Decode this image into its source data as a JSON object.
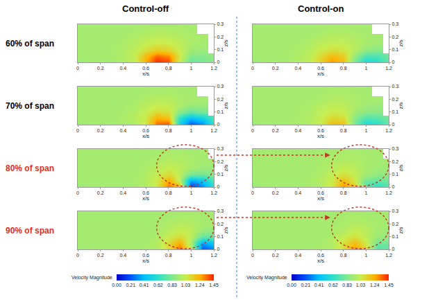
{
  "chart_data": {
    "type": "heatmap",
    "columns": [
      "Control-off",
      "Control-on"
    ],
    "xlabel": "x/s",
    "ylabel": "z/s",
    "x": [
      0,
      0.1,
      0.2,
      0.3,
      0.4,
      0.5,
      0.6,
      0.7,
      0.8,
      0.9,
      1.0,
      1.1,
      1.2
    ],
    "y": [
      0,
      0.05,
      0.1,
      0.15,
      0.2,
      0.25,
      0.3
    ],
    "xlim": [
      0,
      1.2
    ],
    "xticks": [
      0,
      0.2,
      0.4,
      0.6,
      0.8,
      1,
      1.2
    ],
    "ylim": [
      0,
      0.3
    ],
    "yticks": [
      0,
      0.1,
      0.2,
      0.3
    ],
    "colorbar": {
      "title": "Velocity Magnitude",
      "range": [
        0,
        1.45
      ],
      "ticks": [
        {
          "value": 0,
          "label": "0.00"
        },
        {
          "value": 0.21,
          "label": "0.21"
        },
        {
          "value": 0.41,
          "label": "0.41"
        },
        {
          "value": 0.62,
          "label": "0.62"
        },
        {
          "value": 0.83,
          "label": "0.83"
        },
        {
          "value": 1.03,
          "label": "1.03"
        },
        {
          "value": 1.24,
          "label": "1.24"
        },
        {
          "value": 1.45,
          "label": "1.45"
        }
      ]
    },
    "rows": [
      {
        "label": "60% of span",
        "color": "#000000",
        "cells": [
          [
            [
              0.9,
              0.93,
              0.93,
              0.93,
              0.95,
              1.0,
              1.25,
              1.45,
              1.4,
              1.0,
              0.75,
              0.8,
              0.85
            ],
            [
              0.93,
              0.93,
              0.93,
              0.94,
              0.96,
              1.02,
              1.2,
              1.35,
              1.3,
              1.05,
              0.85,
              0.85,
              0.88
            ],
            [
              0.93,
              0.93,
              0.93,
              0.94,
              0.96,
              1.0,
              1.08,
              1.15,
              1.12,
              1.02,
              0.92,
              0.9,
              null
            ],
            [
              0.93,
              0.93,
              0.93,
              0.93,
              0.95,
              0.98,
              1.02,
              1.05,
              1.04,
              1.0,
              0.95,
              0.93,
              null
            ],
            [
              0.93,
              0.93,
              0.93,
              0.93,
              0.94,
              0.96,
              0.98,
              1.0,
              0.99,
              0.97,
              0.95,
              0.94,
              null
            ],
            [
              0.93,
              0.93,
              0.93,
              0.93,
              0.93,
              0.94,
              0.95,
              0.96,
              0.96,
              0.95,
              0.94,
              null,
              null
            ],
            [
              0.93,
              0.93,
              0.93,
              0.93,
              0.93,
              0.93,
              0.94,
              0.94,
              0.94,
              0.94,
              0.93,
              null,
              null
            ]
          ],
          [
            [
              0.9,
              0.93,
              0.93,
              0.93,
              0.95,
              1.0,
              1.15,
              1.3,
              1.2,
              0.8,
              0.55,
              0.6,
              0.75
            ],
            [
              0.93,
              0.93,
              0.93,
              0.94,
              0.96,
              1.0,
              1.1,
              1.2,
              1.15,
              0.9,
              0.7,
              0.7,
              0.8
            ],
            [
              0.93,
              0.93,
              0.93,
              0.94,
              0.95,
              0.98,
              1.04,
              1.08,
              1.06,
              0.98,
              0.88,
              0.85,
              null
            ],
            [
              0.93,
              0.93,
              0.93,
              0.93,
              0.94,
              0.96,
              1.0,
              1.02,
              1.01,
              0.98,
              0.94,
              0.92,
              null
            ],
            [
              0.93,
              0.93,
              0.93,
              0.93,
              0.93,
              0.94,
              0.96,
              0.98,
              0.98,
              0.96,
              0.94,
              0.93,
              null
            ],
            [
              0.93,
              0.93,
              0.93,
              0.93,
              0.93,
              0.93,
              0.94,
              0.95,
              0.95,
              0.94,
              0.93,
              null,
              null
            ],
            [
              0.93,
              0.93,
              0.93,
              0.93,
              0.93,
              0.93,
              0.93,
              0.94,
              0.94,
              0.93,
              0.93,
              null,
              null
            ]
          ]
        ]
      },
      {
        "label": "70% of span",
        "color": "#000000",
        "cells": [
          [
            [
              0.9,
              0.93,
              0.93,
              0.93,
              0.94,
              0.96,
              1.05,
              1.35,
              1.4,
              0.5,
              0.2,
              0.3,
              0.6
            ],
            [
              0.93,
              0.93,
              0.93,
              0.93,
              0.95,
              0.98,
              1.05,
              1.25,
              1.2,
              0.6,
              0.4,
              0.5,
              0.7
            ],
            [
              0.93,
              0.93,
              0.93,
              0.93,
              0.94,
              0.97,
              1.02,
              1.1,
              1.08,
              0.85,
              0.75,
              0.8,
              null
            ],
            [
              0.93,
              0.93,
              0.93,
              0.93,
              0.94,
              0.95,
              0.99,
              1.03,
              1.02,
              0.95,
              0.9,
              0.9,
              null
            ],
            [
              0.93,
              0.93,
              0.93,
              0.93,
              0.93,
              0.94,
              0.96,
              0.98,
              0.98,
              0.95,
              0.94,
              0.93,
              null
            ],
            [
              0.93,
              0.93,
              0.93,
              0.93,
              0.93,
              0.93,
              0.94,
              0.95,
              0.95,
              0.94,
              0.93,
              null,
              null
            ],
            [
              0.93,
              0.93,
              0.93,
              0.93,
              0.93,
              0.93,
              0.93,
              0.94,
              0.94,
              0.93,
              0.93,
              null,
              null
            ]
          ],
          [
            [
              0.9,
              0.93,
              0.93,
              0.93,
              0.94,
              0.96,
              1.02,
              1.2,
              1.2,
              0.8,
              0.55,
              0.6,
              0.75
            ],
            [
              0.93,
              0.93,
              0.93,
              0.93,
              0.95,
              0.97,
              1.02,
              1.12,
              1.1,
              0.85,
              0.7,
              0.72,
              0.8
            ],
            [
              0.93,
              0.93,
              0.93,
              0.93,
              0.94,
              0.96,
              1.0,
              1.04,
              1.03,
              0.93,
              0.86,
              0.86,
              null
            ],
            [
              0.93,
              0.93,
              0.93,
              0.93,
              0.94,
              0.95,
              0.98,
              1.01,
              1.0,
              0.95,
              0.91,
              0.9,
              null
            ],
            [
              0.93,
              0.93,
              0.93,
              0.93,
              0.93,
              0.94,
              0.95,
              0.97,
              0.97,
              0.95,
              0.94,
              0.93,
              null
            ],
            [
              0.93,
              0.93,
              0.93,
              0.93,
              0.93,
              0.93,
              0.94,
              0.95,
              0.95,
              0.94,
              0.93,
              null,
              null
            ],
            [
              0.93,
              0.93,
              0.93,
              0.93,
              0.93,
              0.93,
              0.93,
              0.94,
              0.94,
              0.93,
              0.93,
              null,
              null
            ]
          ]
        ]
      },
      {
        "label": "80% of span",
        "color": "#e0301e",
        "cells": [
          [
            [
              0.9,
              0.93,
              0.93,
              0.93,
              0.93,
              0.94,
              0.96,
              1.05,
              1.35,
              1.2,
              0.15,
              0.3,
              0.6
            ],
            [
              0.93,
              0.93,
              0.93,
              0.93,
              0.93,
              0.94,
              0.97,
              1.05,
              1.25,
              1.0,
              0.35,
              0.45,
              0.7
            ],
            [
              0.93,
              0.93,
              0.93,
              0.93,
              0.93,
              0.94,
              0.96,
              1.02,
              1.1,
              1.0,
              0.8,
              0.8,
              0.85
            ],
            [
              0.93,
              0.93,
              0.93,
              0.93,
              0.93,
              0.93,
              0.95,
              0.99,
              1.03,
              1.0,
              0.93,
              0.9,
              0.9
            ],
            [
              0.93,
              0.93,
              0.93,
              0.93,
              0.93,
              0.93,
              0.94,
              0.96,
              0.98,
              0.97,
              0.95,
              0.93,
              0.93
            ],
            [
              0.93,
              0.93,
              0.93,
              0.93,
              0.93,
              0.93,
              0.93,
              0.94,
              0.95,
              0.95,
              0.94,
              0.93,
              null
            ],
            [
              0.93,
              0.93,
              0.93,
              0.93,
              0.93,
              0.93,
              0.93,
              0.93,
              0.94,
              0.94,
              0.93,
              0.93,
              null
            ]
          ],
          [
            [
              0.9,
              0.93,
              0.93,
              0.93,
              0.93,
              0.94,
              0.96,
              1.05,
              1.3,
              1.15,
              0.7,
              0.6,
              0.7
            ],
            [
              0.93,
              0.93,
              0.93,
              0.93,
              0.93,
              0.94,
              0.97,
              1.04,
              1.2,
              1.05,
              0.8,
              0.75,
              0.8
            ],
            [
              0.93,
              0.93,
              0.93,
              0.93,
              0.93,
              0.94,
              0.96,
              1.01,
              1.08,
              1.02,
              0.92,
              0.88,
              0.88
            ],
            [
              0.93,
              0.93,
              0.93,
              0.93,
              0.93,
              0.93,
              0.95,
              0.98,
              1.02,
              0.99,
              0.94,
              0.91,
              0.91
            ],
            [
              0.93,
              0.93,
              0.93,
              0.93,
              0.93,
              0.93,
              0.94,
              0.96,
              0.97,
              0.96,
              0.94,
              0.93,
              0.93
            ],
            [
              0.93,
              0.93,
              0.93,
              0.93,
              0.93,
              0.93,
              0.93,
              0.94,
              0.95,
              0.95,
              0.94,
              0.93,
              null
            ],
            [
              0.93,
              0.93,
              0.93,
              0.93,
              0.93,
              0.93,
              0.93,
              0.93,
              0.94,
              0.94,
              0.93,
              0.93,
              null
            ]
          ]
        ]
      },
      {
        "label": "90% of span",
        "color": "#e0301e",
        "cells": [
          [
            [
              0.9,
              0.93,
              0.93,
              0.93,
              0.93,
              0.93,
              0.94,
              0.96,
              1.1,
              1.35,
              1.0,
              0.2,
              0.3
            ],
            [
              0.93,
              0.93,
              0.93,
              0.93,
              0.93,
              0.93,
              0.94,
              0.97,
              1.1,
              1.25,
              0.95,
              0.35,
              0.45
            ],
            [
              0.93,
              0.93,
              0.93,
              0.93,
              0.93,
              0.93,
              0.93,
              0.95,
              1.03,
              1.1,
              1.0,
              0.75,
              0.75
            ],
            [
              0.93,
              0.93,
              0.93,
              0.93,
              0.93,
              0.93,
              0.93,
              0.94,
              0.98,
              1.03,
              1.0,
              0.9,
              0.88
            ],
            [
              0.93,
              0.93,
              0.93,
              0.93,
              0.93,
              0.93,
              0.93,
              0.93,
              0.96,
              0.98,
              0.97,
              0.94,
              0.93
            ],
            [
              0.93,
              0.93,
              0.93,
              0.93,
              0.93,
              0.93,
              0.93,
              0.93,
              0.94,
              0.95,
              0.95,
              0.93,
              0.93
            ],
            [
              0.93,
              0.93,
              0.93,
              0.93,
              0.93,
              0.93,
              0.93,
              0.93,
              0.93,
              0.94,
              0.94,
              0.93,
              0.93
            ]
          ],
          [
            [
              0.9,
              0.93,
              0.93,
              0.93,
              0.93,
              0.93,
              0.94,
              0.96,
              1.1,
              1.3,
              1.1,
              0.7,
              0.75
            ],
            [
              0.93,
              0.93,
              0.93,
              0.93,
              0.93,
              0.93,
              0.94,
              0.97,
              1.08,
              1.2,
              1.05,
              0.8,
              0.8
            ],
            [
              0.93,
              0.93,
              0.93,
              0.93,
              0.93,
              0.93,
              0.93,
              0.95,
              1.02,
              1.08,
              1.0,
              0.9,
              0.88
            ],
            [
              0.93,
              0.93,
              0.93,
              0.93,
              0.93,
              0.93,
              0.93,
              0.94,
              0.97,
              1.02,
              0.99,
              0.93,
              0.91
            ],
            [
              0.93,
              0.93,
              0.93,
              0.93,
              0.93,
              0.93,
              0.93,
              0.93,
              0.95,
              0.97,
              0.96,
              0.94,
              0.93
            ],
            [
              0.93,
              0.93,
              0.93,
              0.93,
              0.93,
              0.93,
              0.93,
              0.93,
              0.94,
              0.95,
              0.94,
              0.93,
              0.93
            ],
            [
              0.93,
              0.93,
              0.93,
              0.93,
              0.93,
              0.93,
              0.93,
              0.93,
              0.93,
              0.94,
              0.93,
              0.93,
              0.93
            ]
          ]
        ]
      }
    ]
  }
}
